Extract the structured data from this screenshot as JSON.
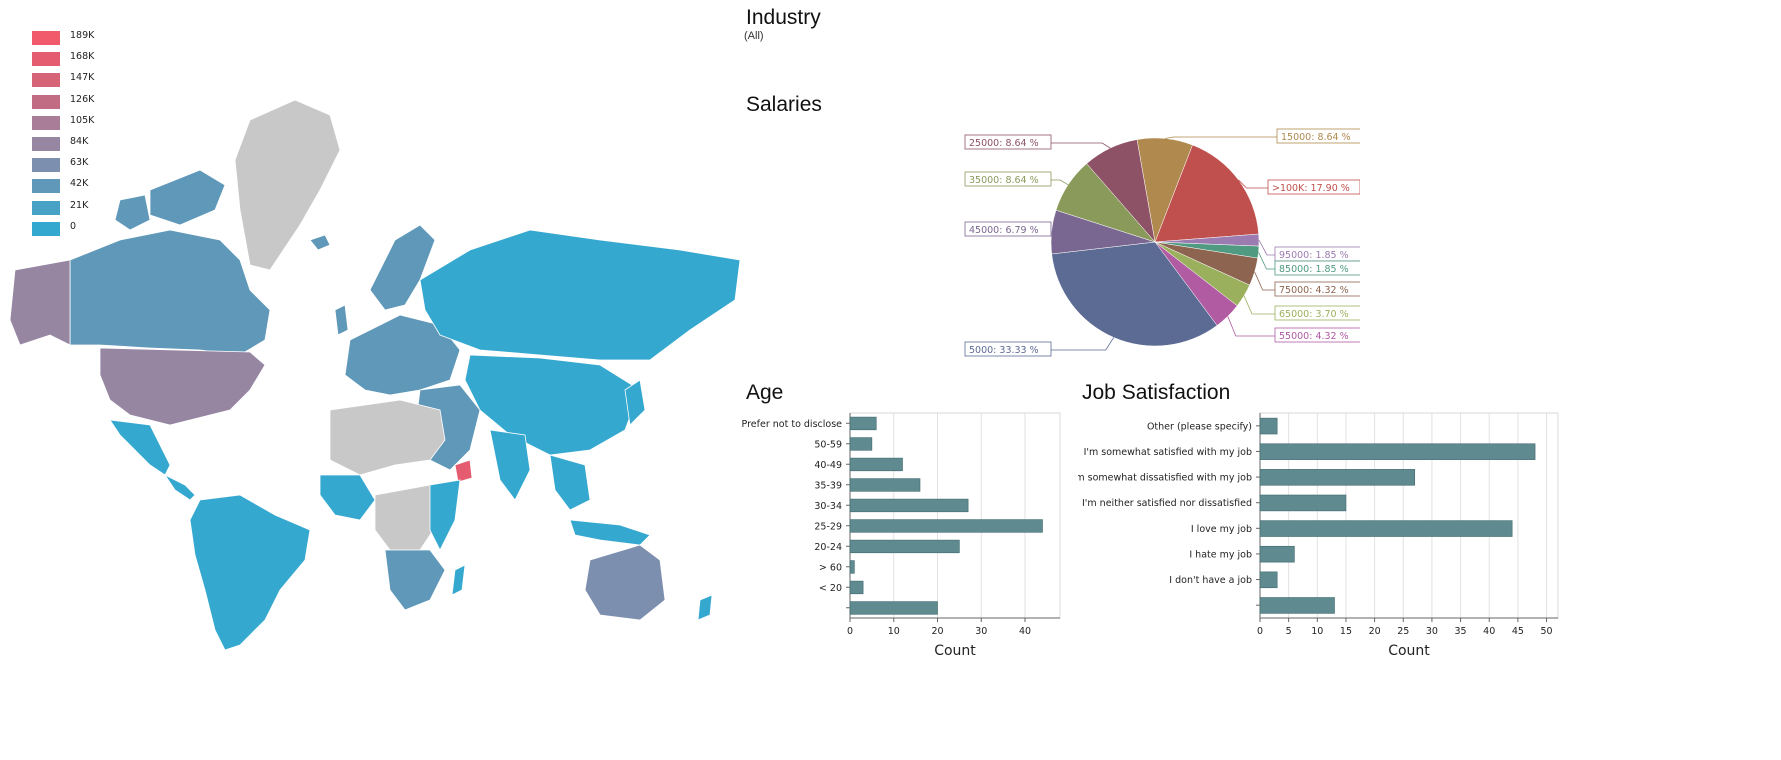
{
  "legend": {
    "items": [
      {
        "label": "189K",
        "color": "#f05a6b"
      },
      {
        "label": "168K",
        "color": "#e55c71"
      },
      {
        "label": "147K",
        "color": "#d56479"
      },
      {
        "label": "126K",
        "color": "#c26c84"
      },
      {
        "label": "105K",
        "color": "#a97c97"
      },
      {
        "label": "84K",
        "color": "#9686a2"
      },
      {
        "label": "63K",
        "color": "#7d8fae"
      },
      {
        "label": "42K",
        "color": "#5f98b8"
      },
      {
        "label": "21K",
        "color": "#47a2c6"
      },
      {
        "label": "0",
        "color": "#35a8d0"
      }
    ],
    "no_data_color": "#c8c8c8"
  },
  "industry": {
    "title": "Industry",
    "filter_value": "(All)"
  },
  "salaries_chart": {
    "title": "Salaries"
  },
  "age_chart": {
    "title": "Age"
  },
  "job_chart": {
    "title": "Job Satisfaction"
  },
  "chart_data": [
    {
      "type": "pie",
      "title": "Salaries",
      "slices": [
        {
          "label": "15000: 8.64 %",
          "value": 8.64,
          "color": "#b0894f"
        },
        {
          "label": ">100K: 17.90 %",
          "value": 17.9,
          "color": "#c0504d"
        },
        {
          "label": "95000: 1.85 %",
          "value": 1.85,
          "color": "#9b7bb0"
        },
        {
          "label": "85000: 1.85 %",
          "value": 1.85,
          "color": "#4f9a80"
        },
        {
          "label": "75000: 4.32 %",
          "value": 4.32,
          "color": "#8c6450"
        },
        {
          "label": "65000: 3.70 %",
          "value": 3.7,
          "color": "#9bb05c"
        },
        {
          "label": "55000: 4.32 %",
          "value": 4.32,
          "color": "#b15ba3"
        },
        {
          "label": "5000: 33.33 %",
          "value": 33.33,
          "color": "#5b6b93"
        },
        {
          "label": "45000: 6.79 %",
          "value": 6.79,
          "color": "#7a6791"
        },
        {
          "label": "35000: 8.64 %",
          "value": 8.64,
          "color": "#8a9a5b"
        },
        {
          "label": "25000: 8.64 %",
          "value": 8.64,
          "color": "#8e5266"
        }
      ],
      "legend": "labels around pie"
    },
    {
      "type": "bar",
      "title": "Age",
      "orientation": "horizontal",
      "categories": [
        "Prefer not to disclose",
        "50-59",
        "40-49",
        "35-39",
        "30-34",
        "25-29",
        "20-24",
        "> 60",
        "< 20",
        ""
      ],
      "values": [
        6,
        5,
        12,
        16,
        27,
        44,
        25,
        1,
        3,
        20
      ],
      "xlabel": "Count",
      "xlim": [
        0,
        48
      ],
      "xticks": [
        0,
        10,
        20,
        30,
        40
      ],
      "grid": true,
      "bar_color": "#5f8a90"
    },
    {
      "type": "bar",
      "title": "Job Satisfaction",
      "orientation": "horizontal",
      "categories": [
        "Other (please specify)",
        "I'm somewhat satisfied with my job",
        "I'm somewhat dissatisfied with my job",
        "I'm neither satisfied nor dissatisfied",
        "I love my job",
        "I hate my job",
        "I don't have a job",
        ""
      ],
      "values": [
        3,
        48,
        27,
        15,
        44,
        6,
        3,
        13
      ],
      "xlabel": "Count",
      "xlim": [
        0,
        52
      ],
      "xticks": [
        0,
        5,
        10,
        15,
        20,
        25,
        30,
        35,
        40,
        45,
        50
      ],
      "grid": true,
      "bar_color": "#5f8a90"
    }
  ]
}
